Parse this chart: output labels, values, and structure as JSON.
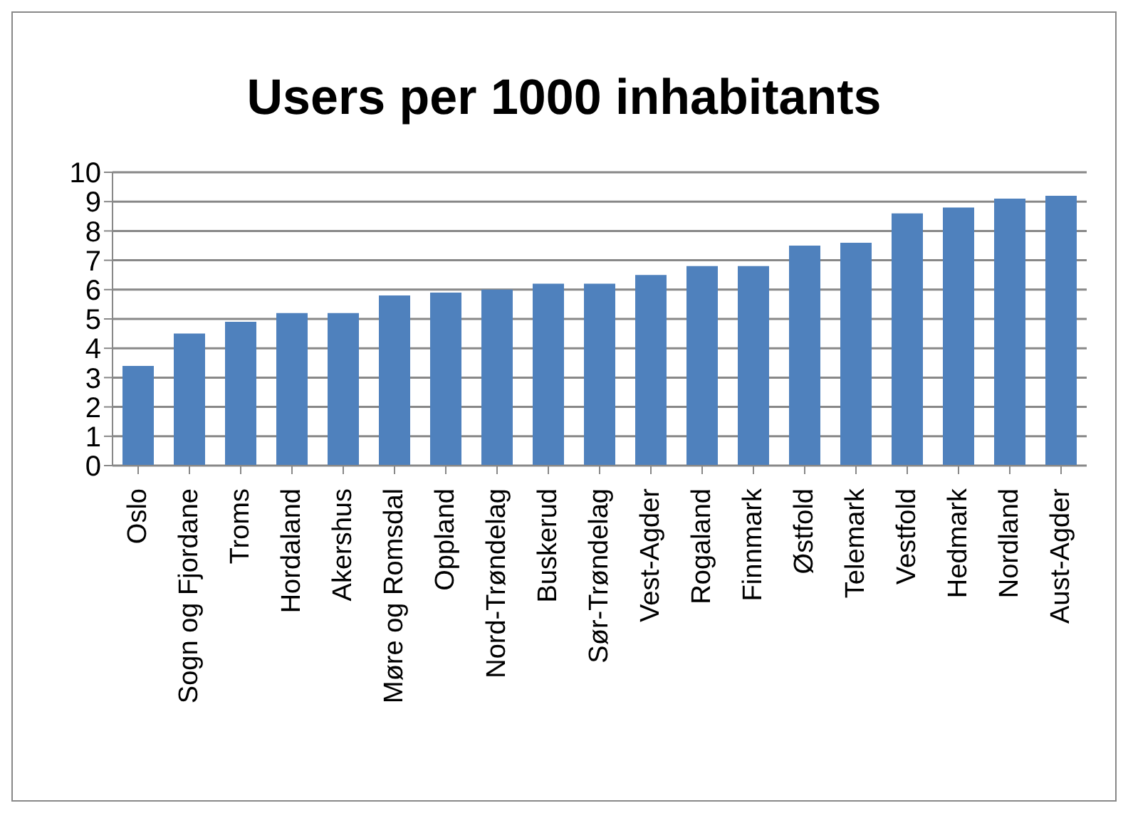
{
  "chart_data": {
    "type": "bar",
    "title": "Users per 1000 inhabitants",
    "categories": [
      "Oslo",
      "Sogn og Fjordane",
      "Troms",
      "Hordaland",
      "Akershus",
      "Møre og Romsdal",
      "Oppland",
      "Nord-Trøndelag",
      "Buskerud",
      "Sør-Trøndelag",
      "Vest-Agder",
      "Rogaland",
      "Finnmark",
      "Østfold",
      "Telemark",
      "Vestfold",
      "Hedmark",
      "Nordland",
      "Aust-Agder"
    ],
    "values": [
      3.4,
      4.5,
      4.9,
      5.2,
      5.2,
      5.8,
      5.9,
      6.0,
      6.2,
      6.2,
      6.5,
      6.8,
      6.8,
      7.5,
      7.6,
      8.6,
      8.8,
      9.1,
      9.2
    ],
    "color": "#4f81bd",
    "ylim": [
      0,
      10
    ],
    "yticks": [
      0,
      1,
      2,
      3,
      4,
      5,
      6,
      7,
      8,
      9,
      10
    ],
    "grid": "y",
    "legend": false
  }
}
